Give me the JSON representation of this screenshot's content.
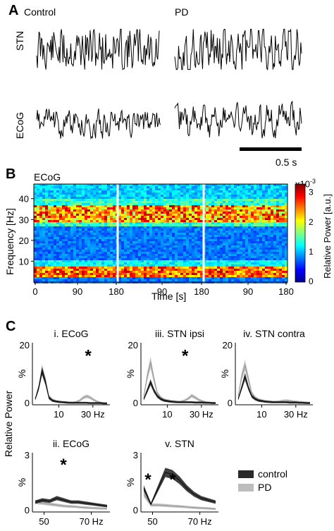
{
  "panel_a": {
    "letter": "A",
    "col_control": "Control",
    "col_pd": "PD",
    "row_stn": "STN",
    "row_ecog": "ECoG",
    "scalebar": "0.5 s"
  },
  "panel_b": {
    "letter": "B",
    "title": "ECoG",
    "ylabel": "Frequency [Hz]",
    "xlabel": "Time [s]",
    "yticks": [
      "40",
      "30",
      "20",
      "10"
    ],
    "xticks": [
      "0",
      "90",
      "180",
      "90",
      "180",
      "90",
      "180"
    ],
    "colorbar_label": "Relative Power [a.u.]",
    "colorbar_exponent": "x10",
    "colorbar_exponent_sup": "-3",
    "colorbar_ticks": [
      "3",
      "2",
      "1",
      "0"
    ]
  },
  "panel_c": {
    "letter": "C",
    "ylabel": "Relative Power",
    "legend": [
      {
        "label": "control",
        "color": "#2a2a2a"
      },
      {
        "label": "PD",
        "color": "#bdbdbd"
      }
    ],
    "star": "*"
  },
  "chart_data": [
    {
      "type": "area",
      "title": "i. ECoG",
      "ylabel": "%",
      "yticks": [
        "20",
        "0"
      ],
      "xticks": [
        "10",
        "30 Hz"
      ],
      "x": [
        2,
        4,
        6,
        8,
        10,
        12,
        14,
        16,
        18,
        20,
        22,
        24,
        26,
        28,
        30,
        32,
        34,
        36,
        38,
        40,
        42,
        44
      ],
      "series": [
        {
          "name": "control",
          "values": [
            2,
            6,
            12,
            8,
            2.5,
            1.5,
            1.2,
            1,
            0.9,
            0.8,
            0.7,
            0.7,
            0.7,
            0.7,
            0.7,
            0.7,
            0.6,
            0.6,
            0.6,
            0.6,
            0.5,
            0.5
          ]
        },
        {
          "name": "PD",
          "values": [
            2,
            6,
            12.5,
            8.5,
            3,
            1.8,
            1.3,
            1.1,
            1,
            0.9,
            0.8,
            0.8,
            1,
            1.5,
            2.5,
            3,
            2.6,
            1.8,
            1.2,
            0.8,
            0.6,
            0.5
          ]
        }
      ],
      "ylim": [
        0,
        22
      ],
      "annotation": "*"
    },
    {
      "type": "area",
      "title": "iii. STN ipsi",
      "ylabel": "%",
      "yticks": [
        "20",
        "0"
      ],
      "xticks": [
        "10",
        "30 Hz"
      ],
      "x": [
        2,
        4,
        6,
        8,
        10,
        12,
        14,
        16,
        18,
        20,
        22,
        24,
        26,
        28,
        30,
        32,
        34,
        36,
        38,
        40,
        42,
        44
      ],
      "series": [
        {
          "name": "control",
          "values": [
            2,
            5,
            8,
            5,
            3,
            2,
            1.5,
            1.3,
            1.1,
            1,
            0.9,
            0.9,
            0.9,
            0.9,
            0.9,
            0.8,
            0.8,
            0.8,
            0.7,
            0.7,
            0.6,
            0.6
          ]
        },
        {
          "name": "PD",
          "values": [
            3,
            10,
            15,
            9,
            4,
            2.5,
            1.8,
            1.5,
            1.3,
            1.2,
            1.1,
            1.2,
            1.5,
            2.2,
            3.2,
            2.6,
            1.8,
            1.3,
            1,
            0.8,
            0.7,
            0.6
          ]
        }
      ],
      "ylim": [
        0,
        22
      ],
      "annotation": "*"
    },
    {
      "type": "area",
      "title": "iv. STN contra",
      "ylabel": "%",
      "yticks": [
        "20",
        "0"
      ],
      "xticks": [
        "10",
        "30 Hz"
      ],
      "x": [
        2,
        4,
        6,
        8,
        10,
        12,
        14,
        16,
        18,
        20,
        22,
        24,
        26,
        28,
        30,
        32,
        34,
        36,
        38,
        40,
        42,
        44
      ],
      "series": [
        {
          "name": "control",
          "values": [
            2,
            6,
            10,
            6,
            3,
            2,
            1.5,
            1.3,
            1.1,
            1,
            0.9,
            0.9,
            0.9,
            0.9,
            0.9,
            0.8,
            0.8,
            0.8,
            0.7,
            0.7,
            0.6,
            0.6
          ]
        },
        {
          "name": "PD",
          "values": [
            3,
            10,
            14,
            9,
            4,
            2.5,
            1.8,
            1.5,
            1.3,
            1.2,
            1.1,
            1.1,
            1.2,
            1.4,
            1.5,
            1.4,
            1.2,
            1.1,
            1,
            0.9,
            0.8,
            0.7
          ]
        }
      ],
      "ylim": [
        0,
        22
      ]
    },
    {
      "type": "area",
      "title": "ii. ECoG",
      "ylabel": "%",
      "yticks": [
        "3",
        "0"
      ],
      "xticks": [
        "50",
        "70 Hz"
      ],
      "x": [
        45,
        48,
        51,
        54,
        57,
        60,
        63,
        66,
        69,
        72,
        75
      ],
      "series": [
        {
          "name": "control",
          "values": [
            0.5,
            0.6,
            0.55,
            0.7,
            0.6,
            0.5,
            0.5,
            0.45,
            0.4,
            0.35,
            0.3
          ]
        },
        {
          "name": "PD",
          "values": [
            0.5,
            0.45,
            0.4,
            0.35,
            0.3,
            0.28,
            0.25,
            0.22,
            0.2,
            0.18,
            0.17
          ]
        }
      ],
      "ylim": [
        0,
        3
      ],
      "annotation": "*"
    },
    {
      "type": "area",
      "title": "v. STN",
      "ylabel": "%",
      "yticks": [
        "3",
        "0"
      ],
      "xticks": [
        "50",
        "70 Hz"
      ],
      "x": [
        45,
        48,
        51,
        54,
        57,
        60,
        63,
        66,
        69,
        72,
        75
      ],
      "series": [
        {
          "name": "control",
          "values": [
            1.2,
            0.4,
            1.2,
            2.0,
            1.9,
            1.6,
            1.2,
            0.9,
            0.7,
            0.6,
            0.5
          ]
        },
        {
          "name": "PD",
          "values": [
            0.9,
            0.35,
            0.35,
            0.33,
            0.3,
            0.28,
            0.25,
            0.22,
            0.2,
            0.18,
            0.15
          ]
        }
      ],
      "ylim": [
        0,
        3
      ],
      "annotation": "* *"
    }
  ]
}
